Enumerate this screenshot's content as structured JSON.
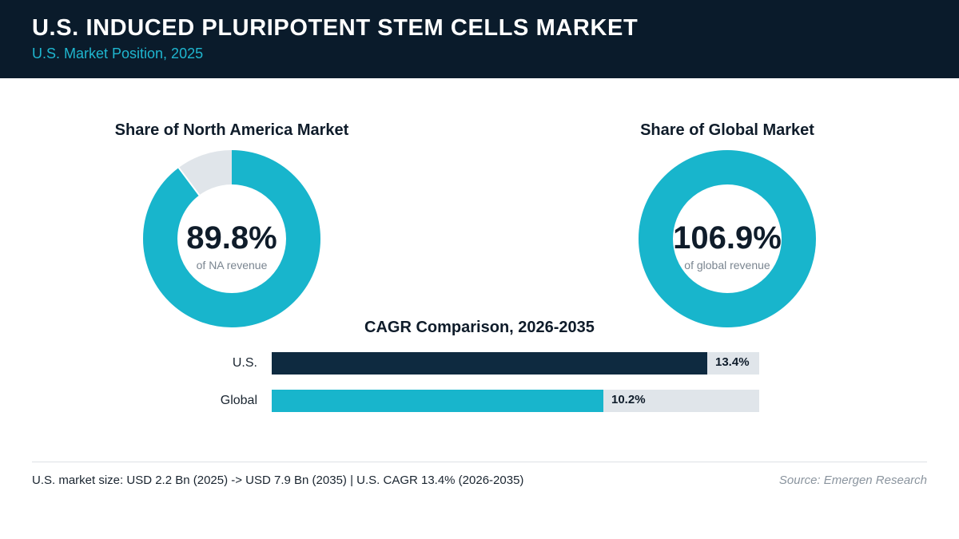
{
  "header": {
    "title": "U.S. INDUCED PLURIPOTENT STEM CELLS MARKET",
    "subtitle": "U.S. Market Position, 2025"
  },
  "chart_data": [
    {
      "type": "pie",
      "title": "Share of North America Market",
      "value_label": "89.8%",
      "caption": "of NA revenue",
      "share_percent": 89.8,
      "colors": {
        "fill": "#18b5cc",
        "remainder": "#e0e5ea"
      }
    },
    {
      "type": "pie",
      "title": "Share of Global Market",
      "value_label": "106.9%",
      "caption": "of global revenue",
      "share_percent": 106.9,
      "colors": {
        "fill": "#18b5cc",
        "remainder": "#e0e5ea"
      }
    },
    {
      "type": "bar",
      "title": "CAGR Comparison, 2026-2035",
      "categories": [
        "U.S.",
        "Global"
      ],
      "values": [
        13.4,
        10.2
      ],
      "value_labels": [
        "13.4%",
        "10.2%"
      ],
      "xlim": [
        0,
        15
      ],
      "colors": [
        "#0e2a40",
        "#18b5cc"
      ],
      "track_color": "#e0e5ea"
    }
  ],
  "footer": {
    "note": "U.S. market size: USD 2.2 Bn (2025) -> USD 7.9 Bn (2035)  |  U.S. CAGR 13.4% (2026-2035)",
    "source": "Source: Emergen Research"
  }
}
